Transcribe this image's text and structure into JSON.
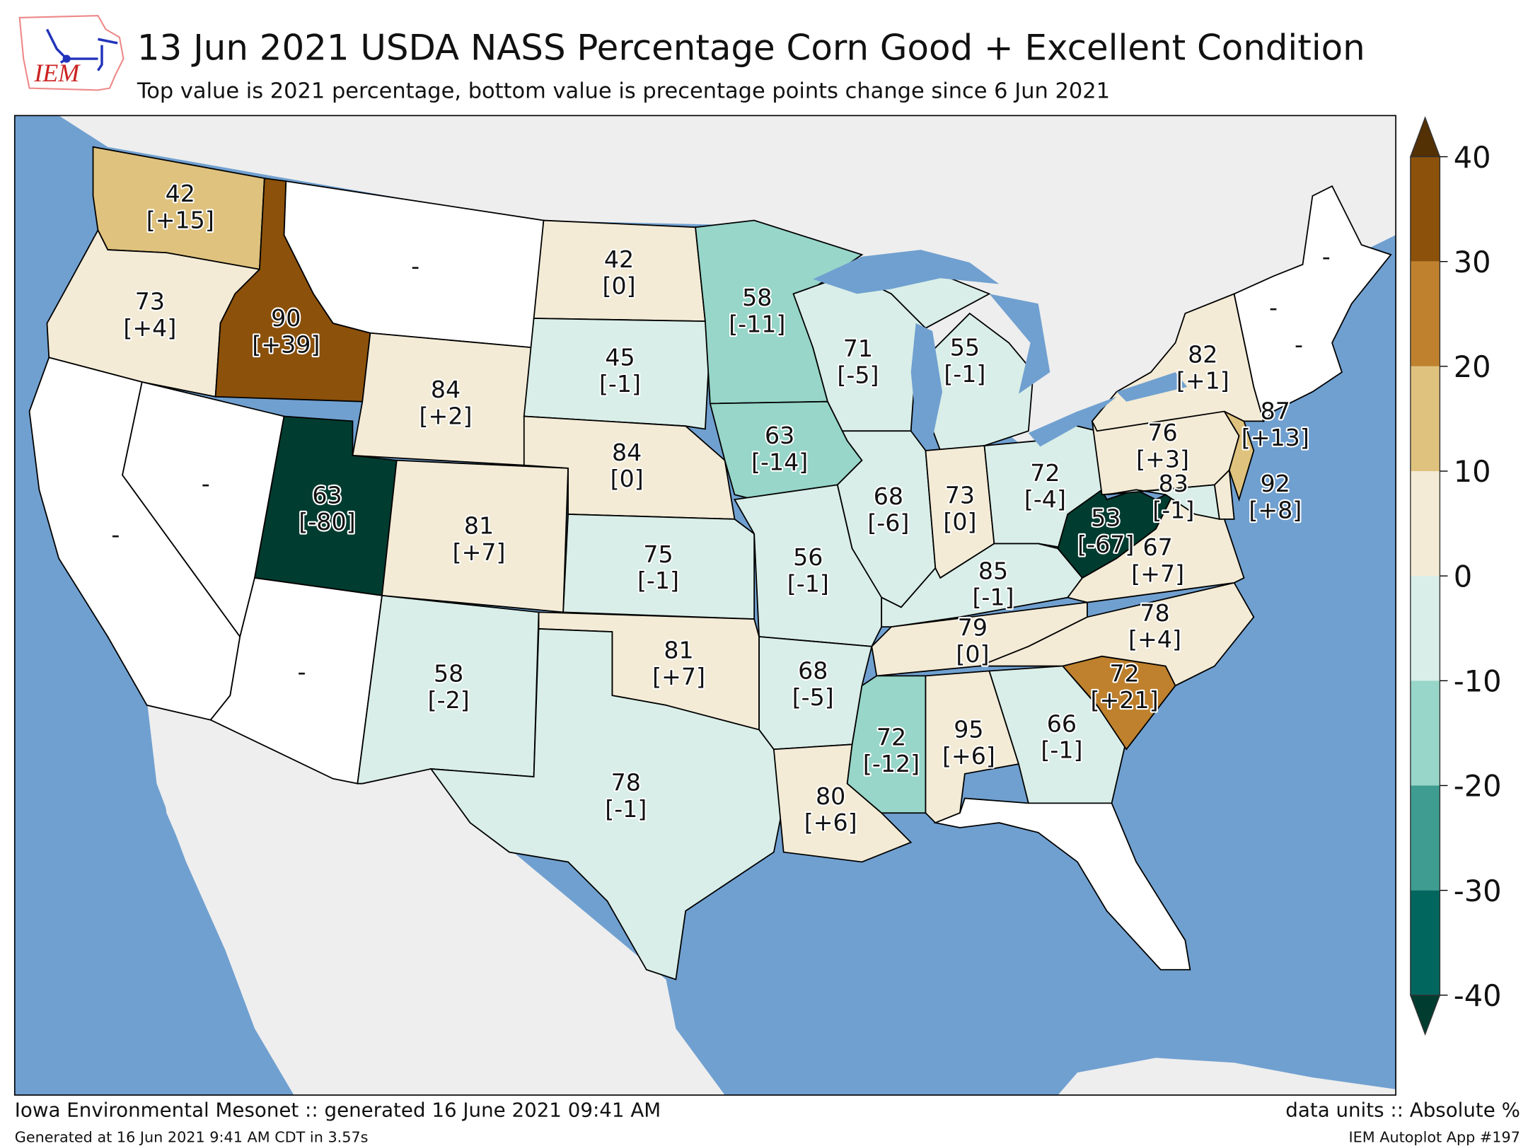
{
  "title": "13 Jun 2021 USDA NASS Percentage Corn Good + Excellent Condition",
  "subtitle": "Top value is 2021 percentage, bottom value is precentage points change since 6 Jun 2021",
  "logo_text": "IEM",
  "footer": {
    "left_main": "Iowa Environmental Mesonet :: generated 16 June 2021 09:41 AM",
    "left_small": "Generated at 16 Jun 2021 9:41 AM CDT in 3.57s",
    "right_main": "data units :: Absolute %",
    "right_small": "IEM Autoplot App #197"
  },
  "colors": {
    "ocean": "#70a0d0",
    "foreign_land": "#eeeeee",
    "no_data": "#ffffff",
    "bins": [
      "#003c30",
      "#01665e",
      "#3f9c91",
      "#97d6c9",
      "#d9eee8",
      "#f3ebd6",
      "#dfc27d",
      "#bf812d",
      "#8c510a",
      "#543005"
    ]
  },
  "colorbar": {
    "ticks": [
      "40",
      "30",
      "20",
      "10",
      "0",
      "-10",
      "-20",
      "-30",
      "-40"
    ],
    "bounds": [
      -40,
      -30,
      -20,
      -10,
      0,
      10,
      20,
      30,
      40
    ]
  },
  "no_data_label": "-",
  "states": {
    "WA": {
      "value": "42",
      "change": "[+15]"
    },
    "OR": {
      "value": "73",
      "change": "[+4]"
    },
    "ID": {
      "value": "90",
      "change": "[+39]"
    },
    "WY": {
      "value": "84",
      "change": "[+2]"
    },
    "UT": {
      "value": "63",
      "change": "[-80]"
    },
    "CO": {
      "value": "81",
      "change": "[+7]"
    },
    "NM": {
      "value": "58",
      "change": "[-2]"
    },
    "ND": {
      "value": "42",
      "change": "[0]"
    },
    "SD": {
      "value": "45",
      "change": "[-1]"
    },
    "NE": {
      "value": "84",
      "change": "[0]"
    },
    "KS": {
      "value": "75",
      "change": "[-1]"
    },
    "OK": {
      "value": "81",
      "change": "[+7]"
    },
    "TX": {
      "value": "78",
      "change": "[-1]"
    },
    "MN": {
      "value": "58",
      "change": "[-11]"
    },
    "IA": {
      "value": "63",
      "change": "[-14]"
    },
    "MO": {
      "value": "56",
      "change": "[-1]"
    },
    "AR": {
      "value": "68",
      "change": "[-5]"
    },
    "LA": {
      "value": "80",
      "change": "[+6]"
    },
    "WI": {
      "value": "71",
      "change": "[-5]"
    },
    "IL": {
      "value": "68",
      "change": "[-6]"
    },
    "MI": {
      "value": "55",
      "change": "[-1]"
    },
    "IN": {
      "value": "73",
      "change": "[0]"
    },
    "OH": {
      "value": "72",
      "change": "[-4]"
    },
    "KY": {
      "value": "85",
      "change": "[-1]"
    },
    "TN": {
      "value": "79",
      "change": "[0]"
    },
    "MS": {
      "value": "72",
      "change": "[-12]"
    },
    "AL": {
      "value": "95",
      "change": "[+6]"
    },
    "GA": {
      "value": "66",
      "change": "[-1]"
    },
    "SC": {
      "value": "72",
      "change": "[+21]"
    },
    "NC": {
      "value": "78",
      "change": "[+4]"
    },
    "VA": {
      "value": "67",
      "change": "[+7]"
    },
    "WV": {
      "value": "53",
      "change": "[-67]"
    },
    "PA": {
      "value": "76",
      "change": "[+3]"
    },
    "MD": {
      "value": "83",
      "change": "[-1]"
    },
    "DE": {
      "value": "92",
      "change": "[+8]"
    },
    "NJ": {
      "value": "87",
      "change": "[+13]"
    },
    "NY": {
      "value": "82",
      "change": "[+1]"
    }
  }
}
